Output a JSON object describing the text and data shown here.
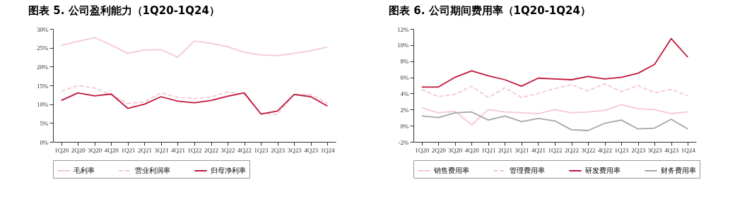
{
  "chart_data": [
    {
      "type": "line",
      "title": "图表 5. 公司盈利能力（1Q20-1Q24）",
      "categories": [
        "1Q20",
        "2Q20",
        "3Q20",
        "4Q20",
        "1Q21",
        "2Q21",
        "3Q21",
        "4Q21",
        "1Q22",
        "2Q22",
        "3Q22",
        "4Q22",
        "1Q23",
        "2Q23",
        "3Q23",
        "4Q23",
        "1Q24"
      ],
      "series": [
        {
          "name": "毛利率",
          "color": "#f4c9d2",
          "line_style": "solid",
          "values": [
            25.6,
            26.7,
            27.7,
            25.7,
            23.5,
            24.4,
            24.5,
            22.5,
            26.8,
            26.2,
            25.3,
            23.8,
            23.1,
            22.9,
            23.5,
            24.2,
            25.2
          ]
        },
        {
          "name": "营业利润率",
          "color": "#f4c9d2",
          "line_style": "dashed",
          "values": [
            13.4,
            15.0,
            14.3,
            12.5,
            10.2,
            10.6,
            13.0,
            11.8,
            11.5,
            11.9,
            13.3,
            12.6,
            7.6,
            7.3,
            12.6,
            12.6,
            10.2
          ]
        },
        {
          "name": "归母净利率",
          "color": "#c0163a",
          "line_style": "solid",
          "values": [
            11.0,
            13.0,
            12.2,
            12.7,
            8.9,
            10.0,
            12.0,
            10.8,
            10.4,
            11.0,
            12.1,
            13.0,
            7.4,
            8.2,
            12.6,
            12.0,
            9.5
          ]
        }
      ],
      "ylim": [
        0,
        30
      ],
      "yticks": [
        {
          "value": 0,
          "label": "0%"
        },
        {
          "value": 5,
          "label": "5%"
        },
        {
          "value": 10,
          "label": "10%"
        },
        {
          "value": 15,
          "label": "15%"
        },
        {
          "value": 20,
          "label": "20%"
        },
        {
          "value": 25,
          "label": "25%"
        },
        {
          "value": 30,
          "label": "30%"
        }
      ],
      "grid": false,
      "legend": "bottom"
    },
    {
      "type": "line",
      "title": "图表 6. 公司期间费用率（1Q20-1Q24）",
      "categories": [
        "1Q20",
        "2Q20",
        "3Q20",
        "4Q20",
        "1Q21",
        "2Q21",
        "3Q21",
        "4Q21",
        "1Q22",
        "2Q22",
        "3Q22",
        "4Q22",
        "1Q23",
        "2Q23",
        "3Q23",
        "4Q23",
        "1Q24"
      ],
      "series": [
        {
          "name": "销售费用率",
          "color": "#f4c9d2",
          "line_style": "solid",
          "values": [
            2.2,
            1.6,
            1.8,
            0.1,
            2.0,
            1.7,
            1.6,
            1.5,
            2.0,
            1.6,
            1.7,
            1.9,
            2.6,
            2.1,
            2.0,
            1.5,
            1.7
          ]
        },
        {
          "name": "管理费用率",
          "color": "#f4c9d2",
          "line_style": "dashed",
          "values": [
            4.5,
            3.6,
            3.9,
            4.9,
            3.5,
            4.7,
            3.5,
            4.0,
            4.6,
            5.1,
            4.3,
            5.2,
            4.2,
            5.0,
            4.1,
            4.5,
            3.7
          ]
        },
        {
          "name": "研发费用率",
          "color": "#c0163a",
          "line_style": "solid",
          "values": [
            4.8,
            4.8,
            6.0,
            6.8,
            6.2,
            5.7,
            4.9,
            5.9,
            5.8,
            5.7,
            6.1,
            5.8,
            6.0,
            6.5,
            7.6,
            10.8,
            8.5
          ]
        },
        {
          "name": "财务费用率",
          "color": "#a6a6a6",
          "line_style": "solid",
          "values": [
            1.2,
            1.0,
            1.6,
            1.7,
            0.7,
            1.2,
            0.5,
            0.9,
            0.6,
            -0.5,
            -0.6,
            0.3,
            0.7,
            -0.4,
            -0.3,
            0.8,
            -0.4
          ]
        }
      ],
      "ylim": [
        -2,
        12
      ],
      "yticks": [
        {
          "value": -2,
          "label": "-2%"
        },
        {
          "value": 0,
          "label": "0%"
        },
        {
          "value": 2,
          "label": "2%"
        },
        {
          "value": 4,
          "label": "4%"
        },
        {
          "value": 6,
          "label": "6%"
        },
        {
          "value": 8,
          "label": "8%"
        },
        {
          "value": 10,
          "label": "10%"
        },
        {
          "value": 12,
          "label": "12%"
        }
      ],
      "grid": false,
      "legend": "bottom"
    }
  ]
}
